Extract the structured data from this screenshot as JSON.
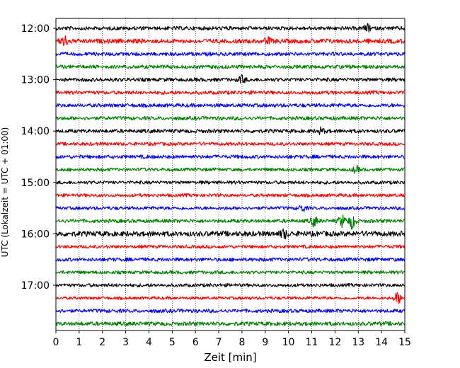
{
  "chart_data": {
    "type": "line",
    "subtype": "helicorder",
    "xlabel": "Zeit  [min]",
    "ylabel": "UTC (Lokalzeit = UTC + 01:00)",
    "xlim": [
      0,
      15
    ],
    "x_ticks": [
      0,
      1,
      2,
      3,
      4,
      5,
      6,
      7,
      8,
      9,
      10,
      11,
      12,
      13,
      14,
      15
    ],
    "y_tick_labels": [
      "12:00",
      "13:00",
      "14:00",
      "15:00",
      "16:00",
      "17:00"
    ],
    "grid": "vertical dotted",
    "trace_colors": [
      "#000000",
      "#ff0000",
      "#0000ff",
      "#008000"
    ],
    "trace_start_times": [
      "12:00",
      "12:15",
      "12:30",
      "12:45",
      "13:00",
      "13:15",
      "13:30",
      "13:45",
      "14:00",
      "14:15",
      "14:30",
      "14:45",
      "15:00",
      "15:15",
      "15:30",
      "15:45",
      "16:00",
      "16:15",
      "16:30",
      "16:45",
      "17:00",
      "17:15",
      "17:30",
      "17:45"
    ],
    "trace_noise_level": [
      0.5,
      0.6,
      0.5,
      0.5,
      0.5,
      0.5,
      0.5,
      0.5,
      0.5,
      0.45,
      0.5,
      0.45,
      0.45,
      0.45,
      0.45,
      0.5,
      0.7,
      0.45,
      0.5,
      0.45,
      0.45,
      0.4,
      0.5,
      0.55
    ],
    "events": [
      {
        "trace": 1,
        "minute": 0.35,
        "amplitude": 2.2
      },
      {
        "trace": 0,
        "minute": 13.4,
        "amplitude": 1.4
      },
      {
        "trace": 1,
        "minute": 9.1,
        "amplitude": 1.3
      },
      {
        "trace": 4,
        "minute": 8.0,
        "amplitude": 1.4
      },
      {
        "trace": 8,
        "minute": 11.4,
        "amplitude": 1.2
      },
      {
        "trace": 11,
        "minute": 12.9,
        "amplitude": 1.3
      },
      {
        "trace": 14,
        "minute": 10.6,
        "amplitude": 1.3
      },
      {
        "trace": 15,
        "minute": 11.1,
        "amplitude": 2.0
      },
      {
        "trace": 15,
        "minute": 12.3,
        "amplitude": 2.4
      },
      {
        "trace": 15,
        "minute": 12.75,
        "amplitude": 3.2
      },
      {
        "trace": 16,
        "minute": 9.8,
        "amplitude": 1.6
      },
      {
        "trace": 21,
        "minute": 14.7,
        "amplitude": 2.4
      }
    ]
  }
}
